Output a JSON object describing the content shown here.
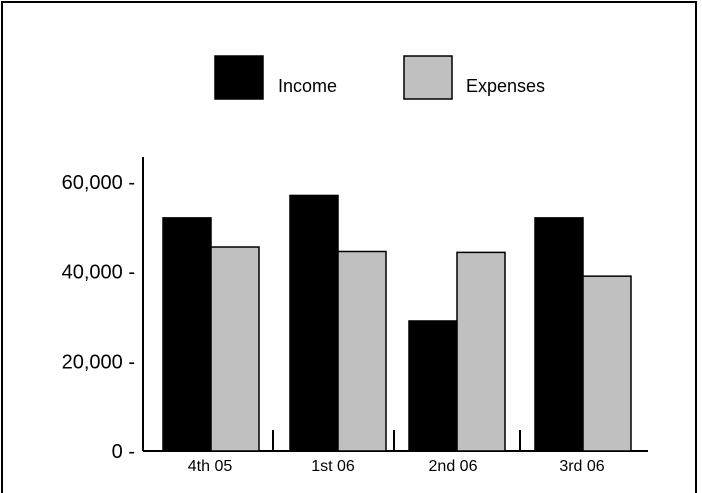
{
  "chart_data": {
    "type": "bar",
    "categories": [
      "4th 05",
      "1st 06",
      "2nd 06",
      "3rd 06"
    ],
    "series": [
      {
        "name": "Income",
        "color": "#000000",
        "values": [
          52000,
          57000,
          29000,
          52000
        ]
      },
      {
        "name": "Expenses",
        "color": "#c0c0c0",
        "values": [
          45500,
          44500,
          44300,
          39000
        ]
      }
    ],
    "y_ticks": [
      {
        "value": 0,
        "label": "0 -"
      },
      {
        "value": 20000,
        "label": "20,000 -"
      },
      {
        "value": 40000,
        "label": "40,000 -"
      },
      {
        "value": 60000,
        "label": "60,000 -"
      }
    ],
    "ylim": [
      0,
      60000
    ],
    "legend_position": "top-center",
    "grid": false
  }
}
